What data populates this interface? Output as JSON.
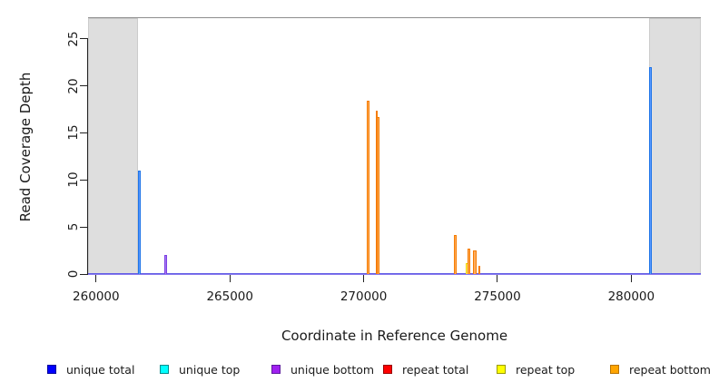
{
  "chart_data": {
    "type": "bar",
    "title": "",
    "xlabel": "Coordinate in Reference Genome",
    "ylabel": "Read Coverage Depth",
    "xlim": [
      259700,
      282600
    ],
    "ylim": [
      0,
      27.2
    ],
    "x_ticks": [
      260000,
      265000,
      270000,
      275000,
      280000
    ],
    "y_ticks": [
      0,
      5,
      10,
      15,
      20,
      25
    ],
    "grid": false,
    "legend_position": "bottom",
    "shaded_regions": [
      {
        "x_from": 259700,
        "x_to": 261550
      },
      {
        "x_from": 280680,
        "x_to": 282600
      }
    ],
    "baseline": {
      "y": 0,
      "colors": [
        "#4b4be0",
        "#a18cf2"
      ]
    },
    "series": [
      {
        "name": "unique total",
        "legend_fill": "#0000ff",
        "legend_border": "#00009b",
        "bar_edge": "#1e74e8",
        "bar_fill": "#5b9bff",
        "points": [
          {
            "x": 261620,
            "y": 11,
            "w": 3
          },
          {
            "x": 280720,
            "y": 22,
            "w": 3
          }
        ]
      },
      {
        "name": "unique top",
        "legend_fill": "#00ffff",
        "legend_border": "#008b8b",
        "bar_edge": "#00c5c5",
        "bar_fill": "#7fffff",
        "points": []
      },
      {
        "name": "unique bottom",
        "legend_fill": "#a020f0",
        "legend_border": "#5e1a9e",
        "bar_edge": "#7b3fe4",
        "bar_fill": "#a77bf0",
        "points": [
          {
            "x": 262600,
            "y": 2,
            "w": 2.5
          }
        ]
      },
      {
        "name": "repeat total",
        "legend_fill": "#ff0000",
        "legend_border": "#990000",
        "bar_edge": "#e53935",
        "bar_fill": "#ff7a75",
        "points": []
      },
      {
        "name": "repeat top",
        "legend_fill": "#ffff00",
        "legend_border": "#9b9b00",
        "bar_edge": "#f0d000",
        "bar_fill": "#fff170",
        "points": [
          {
            "x": 273870,
            "y": 1.2,
            "w": 2.5
          }
        ]
      },
      {
        "name": "repeat bottom",
        "legend_fill": "#ffa500",
        "legend_border": "#b87300",
        "bar_edge": "#f57c00",
        "bar_fill": "#ffac5c",
        "points": [
          {
            "x": 270170,
            "y": 18.4,
            "w": 3
          },
          {
            "x": 270490,
            "y": 17.4,
            "w": 2
          },
          {
            "x": 270545,
            "y": 16.7,
            "w": 3
          },
          {
            "x": 273430,
            "y": 4.1,
            "w": 2.5
          },
          {
            "x": 273915,
            "y": 2.7,
            "w": 3
          },
          {
            "x": 274150,
            "y": 2.5,
            "w": 3.5
          },
          {
            "x": 274320,
            "y": 0.9,
            "w": 2.5
          }
        ]
      }
    ]
  },
  "axes": {
    "x_title": "Coordinate in Reference Genome",
    "y_title": "Read Coverage Depth"
  },
  "legend": {
    "items": [
      {
        "label": "unique total"
      },
      {
        "label": "unique top"
      },
      {
        "label": "unique bottom"
      },
      {
        "label": "repeat total"
      },
      {
        "label": "repeat top"
      },
      {
        "label": "repeat bottom"
      }
    ]
  }
}
